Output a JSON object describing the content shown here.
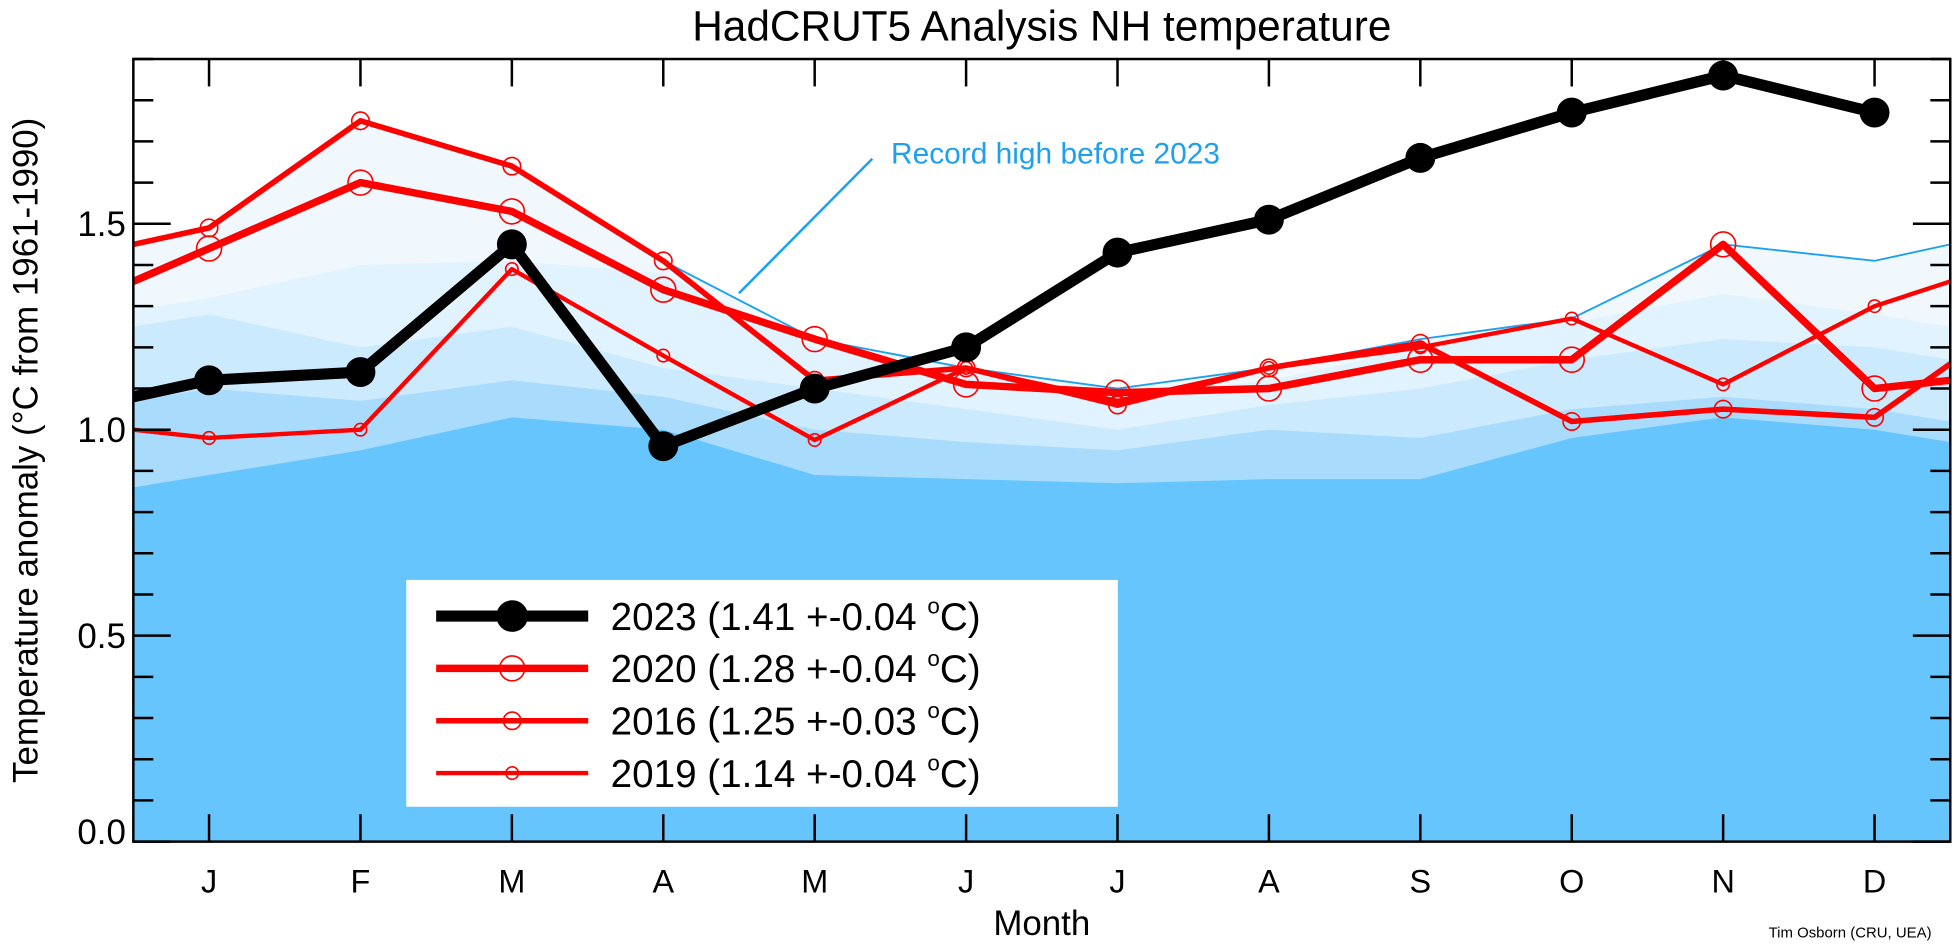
{
  "chart_data": {
    "type": "line",
    "title": "HadCRUT5 Analysis NH temperature",
    "xlabel": "Month",
    "ylabel": "Temperature anomaly (°C from 1961-1990)",
    "ylabel_parts": {
      "pre": "Temperature anomaly (",
      "sup": "o",
      "post": "C from 1961-1990)"
    },
    "categories": [
      "J",
      "F",
      "M",
      "A",
      "M",
      "J",
      "J",
      "A",
      "S",
      "O",
      "N",
      "D"
    ],
    "xlim": [
      0.5,
      12.5
    ],
    "ylim": [
      0,
      1.9
    ],
    "yticks": [
      {
        "v": 0,
        "label": "0.0"
      },
      {
        "v": 0.5,
        "label": "0.5"
      },
      {
        "v": 1.0,
        "label": "1.0"
      },
      {
        "v": 1.5,
        "label": "1.5"
      }
    ],
    "series": [
      {
        "name": "2023",
        "legend": "2023 (1.41 +-0.04 ",
        "unit": "C)",
        "color": "#000000",
        "marker": "filled",
        "edge_left": 1.08,
        "values": [
          1.12,
          1.14,
          1.45,
          0.96,
          1.1,
          1.2,
          1.43,
          1.51,
          1.66,
          1.77,
          1.86,
          1.77
        ],
        "edge_right": null
      },
      {
        "name": "2020",
        "legend": "2020 (1.28 +-0.04 ",
        "unit": "C)",
        "color": "#ff0000",
        "marker": "open",
        "edge_left": 1.36,
        "values": [
          1.44,
          1.6,
          1.53,
          1.34,
          1.22,
          1.11,
          1.09,
          1.1,
          1.17,
          1.17,
          1.45,
          1.1
        ],
        "edge_right": 1.12
      },
      {
        "name": "2016",
        "legend": "2016 (1.25 +-0.03 ",
        "unit": "C)",
        "color": "#ff0000",
        "marker": "open",
        "edge_left": 1.45,
        "values": [
          1.49,
          1.75,
          1.64,
          1.41,
          1.12,
          1.15,
          1.06,
          1.15,
          1.21,
          1.02,
          1.05,
          1.03
        ],
        "edge_right": 1.16
      },
      {
        "name": "2019",
        "legend": "2019 (1.14 +-0.04 ",
        "unit": "C)",
        "color": "#ff0000",
        "marker": "open",
        "edge_left": 1.0,
        "values": [
          0.98,
          1.0,
          1.39,
          1.18,
          0.975,
          1.15,
          1.07,
          1.15,
          1.2,
          1.27,
          1.11,
          1.3
        ],
        "edge_right": 1.36
      }
    ],
    "record_high": {
      "label": "Record high before 2023",
      "color": "#1ea0f0",
      "edge_left": 1.45,
      "values": [
        1.49,
        1.75,
        1.64,
        1.41,
        1.22,
        1.15,
        1.1,
        1.15,
        1.22,
        1.27,
        1.45,
        1.41
      ],
      "edge_right": 1.45
    },
    "shading_bands": [
      {
        "color": "#e1f3fe",
        "values": [
          1.32,
          1.4,
          1.41,
          1.38,
          1.2,
          1.14,
          1.08,
          1.12,
          1.2,
          1.26,
          1.33,
          1.28
        ]
      },
      {
        "color": "#cbeafd",
        "values": [
          1.28,
          1.2,
          1.25,
          1.15,
          1.1,
          1.05,
          1.0,
          1.06,
          1.1,
          1.17,
          1.22,
          1.2
        ]
      },
      {
        "color": "#a9dcfc",
        "values": [
          1.1,
          1.07,
          1.12,
          1.08,
          1.0,
          0.97,
          0.95,
          1.0,
          0.98,
          1.05,
          1.08,
          1.05
        ]
      },
      {
        "color": "#66c5fc",
        "values": [
          0.89,
          0.95,
          1.03,
          1.0,
          0.89,
          0.88,
          0.87,
          0.88,
          0.88,
          0.98,
          1.03,
          1.0
        ]
      }
    ],
    "grid": false,
    "legend_placement": "bottom-left"
  },
  "credit": "Tim Osborn (CRU, UEA)",
  "colors": {
    "record_fill": "#f0f8fe",
    "axis": "#000000"
  }
}
